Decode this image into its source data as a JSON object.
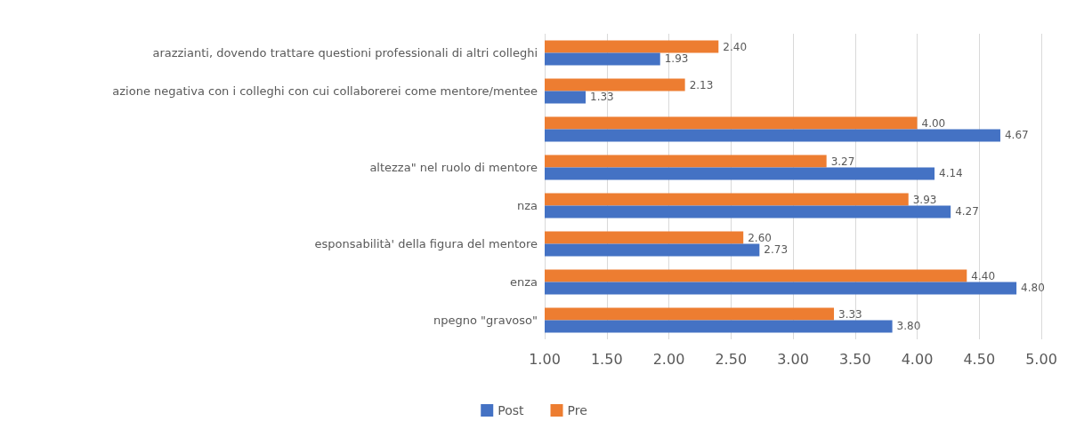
{
  "chart_data": {
    "type": "bar",
    "orientation": "horizontal",
    "categories": [
      "arazzianti, dovendo trattare questioni professionali di altri colleghi",
      "azione negativa con i colleghi con cui collaborerei come mentore/mentee",
      null,
      "altezza\" nel ruolo di mentore",
      "nza",
      "esponsabilità' della figura del mentore",
      "enza",
      "npegno \"gravoso\""
    ],
    "series": [
      {
        "name": "Post",
        "color": "#4472c4",
        "values": [
          1.93,
          1.33,
          4.67,
          4.14,
          4.27,
          2.73,
          4.8,
          3.8
        ],
        "value_labels": [
          "1.93",
          "1.33",
          "4.67",
          "4.14",
          "4.27",
          "2.73",
          "4.80",
          "3.80"
        ]
      },
      {
        "name": "Pre",
        "color": "#ed7d31",
        "values": [
          2.4,
          2.13,
          4.0,
          3.27,
          3.93,
          2.6,
          4.4,
          3.33
        ],
        "value_labels": [
          "2.40",
          "2.13",
          "4.00",
          "3.27",
          "3.93",
          "2.60",
          "4.40",
          "3.33"
        ]
      }
    ],
    "xlim": [
      1,
      5
    ],
    "xticks": [
      {
        "value": 1,
        "label": "1.00"
      },
      {
        "value": 1.5,
        "label": "1.50"
      },
      {
        "value": 2,
        "label": "2.00"
      },
      {
        "value": 2.5,
        "label": "2.50"
      },
      {
        "value": 3,
        "label": "3.00"
      },
      {
        "value": 3.5,
        "label": "3.50"
      },
      {
        "value": 4,
        "label": "4.00"
      },
      {
        "value": 4.5,
        "label": "4.50"
      },
      {
        "value": 5,
        "label": "5.00"
      }
    ],
    "grid": "x",
    "legend": "bottom"
  }
}
